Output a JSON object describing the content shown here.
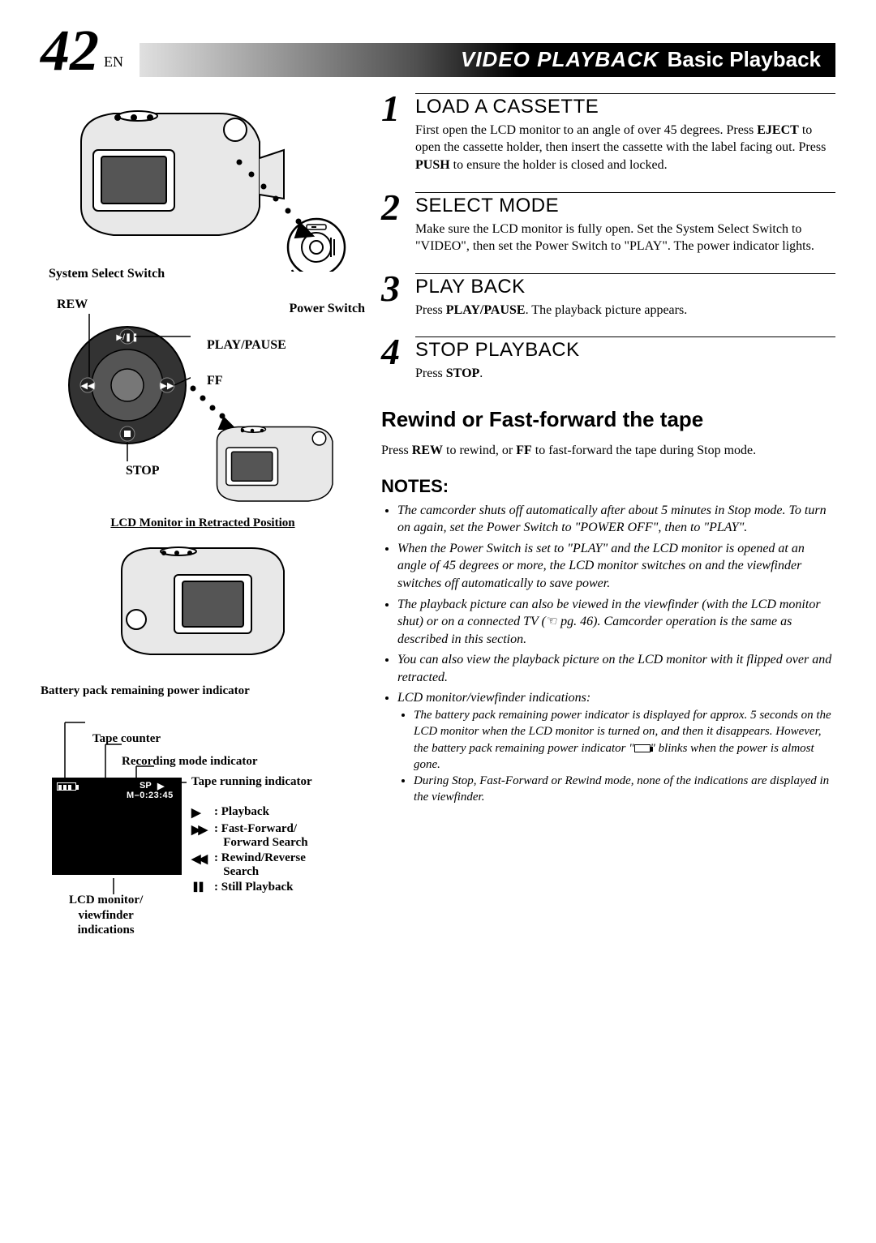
{
  "page_number": "42",
  "lang": "EN",
  "title_main": "VIDEO  PLAYBACK",
  "title_sub": "Basic Playback",
  "left": {
    "system_select_label": "System Select Switch",
    "rew_label": "REW",
    "power_switch_label": "Power Switch",
    "play_pause_label": "PLAY/PAUSE",
    "ff_label": "FF",
    "stop_label": "STOP",
    "lcd_retracted_title": "LCD Monitor in Retracted Position",
    "battery_remain_label": "Battery pack remaining power indicator",
    "tape_counter_label": "Tape counter",
    "recording_mode_label": "Recording mode indicator",
    "tape_running_label": "Tape running indicator",
    "lcd_sp": "SP",
    "lcd_play_sym": "▶",
    "lcd_timecode": "M–0:23:45",
    "lcd_viewfinder_label": "LCD monitor/\nviewfinder\nindications",
    "legend": {
      "playback_sym": "▶",
      "playback_label": ": Playback",
      "ff_sym": "▶▶",
      "ff_label": ": Fast-Forward/\n   Forward Search",
      "rew_sym": "◀◀",
      "rew_label": ": Rewind/Reverse\n   Search",
      "still_sym": "❚❚",
      "still_label": ": Still Playback"
    }
  },
  "steps": [
    {
      "num": "1",
      "title": "LOAD A CASSETTE",
      "body_segments": [
        {
          "t": "First open the LCD monitor to an angle of over 45 degrees. Press "
        },
        {
          "t": "EJECT",
          "b": true
        },
        {
          "t": " to open the cassette holder, then insert the cassette with the label facing out. Press "
        },
        {
          "t": "PUSH",
          "b": true
        },
        {
          "t": " to ensure the holder is closed and locked."
        }
      ]
    },
    {
      "num": "2",
      "title": "SELECT MODE",
      "body_segments": [
        {
          "t": "Make sure the LCD monitor is fully open. Set the System Select Switch to \"VIDEO\", then set the Power Switch to \"PLAY\". The power indicator lights."
        }
      ]
    },
    {
      "num": "3",
      "title": "PLAY BACK",
      "body_segments": [
        {
          "t": "Press "
        },
        {
          "t": "PLAY/PAUSE",
          "b": true
        },
        {
          "t": ". The playback picture appears."
        }
      ]
    },
    {
      "num": "4",
      "title": "STOP PLAYBACK",
      "body_segments": [
        {
          "t": "Press "
        },
        {
          "t": "STOP",
          "b": true
        },
        {
          "t": "."
        }
      ]
    }
  ],
  "rewind_ff": {
    "heading": "Rewind or Fast-forward the tape",
    "body_segments": [
      {
        "t": "Press "
      },
      {
        "t": "REW",
        "b": true
      },
      {
        "t": " to rewind, or "
      },
      {
        "t": "FF",
        "b": true
      },
      {
        "t": " to fast-forward the tape during Stop mode."
      }
    ]
  },
  "notes_heading": "NOTES:",
  "notes": [
    "The camcorder shuts off automatically after about 5 minutes in Stop mode. To turn on again, set the Power Switch to \"POWER OFF\", then to \"PLAY\".",
    "When the Power Switch is set to \"PLAY\" and the LCD monitor is opened at an angle of 45 degrees or more, the LCD monitor switches on and the viewfinder switches off automatically to save power.",
    "The playback picture can also be viewed in the viewfinder (with the LCD monitor shut) or on a connected TV (☞ pg. 46). Camcorder operation is the same as described in this section.",
    "You can also view the playback picture on the LCD monitor with it flipped over and retracted.",
    "LCD monitor/viewfinder indications:"
  ],
  "notes_sub": [
    "The battery pack remaining power indicator is displayed for approx. 5 seconds on the LCD monitor when the LCD monitor is turned on, and then it disappears. However, the battery pack remaining power indicator \"[BATT]\" blinks when the power is almost gone.",
    "During Stop, Fast-Forward or Rewind mode, none of the indications are displayed in the viewfinder."
  ]
}
